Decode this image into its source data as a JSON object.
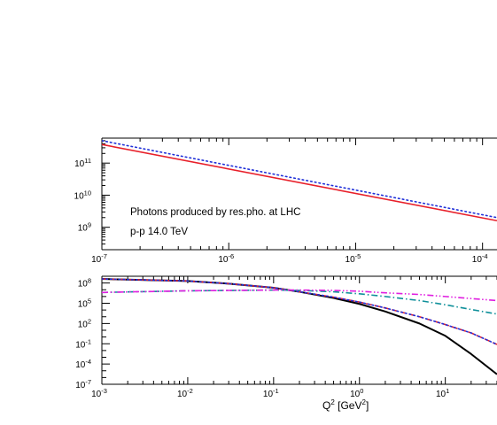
{
  "chart_data": [
    {
      "type": "line",
      "title": "",
      "annotations": [
        "Photons produced by res.pho. at LHC",
        "p-p 14.0 TeV"
      ],
      "xscale": "log",
      "yscale": "log",
      "xlim": [
        1e-07,
        0.00013
      ],
      "ylim": [
        200000000.0,
        600000000000.0
      ],
      "x_ticks": [
        {
          "value": 1e-07,
          "label": "10-7",
          "base": "10",
          "exp": "-7"
        },
        {
          "value": 1e-06,
          "label": "10-6",
          "base": "10",
          "exp": "-6"
        },
        {
          "value": 1e-05,
          "label": "10-5",
          "base": "10",
          "exp": "-5"
        },
        {
          "value": 0.0001,
          "label": "10-4",
          "base": "10",
          "exp": "-4"
        }
      ],
      "y_ticks": [
        {
          "value": 1000000000.0,
          "label": "109",
          "base": "10",
          "exp": "9"
        },
        {
          "value": 10000000000.0,
          "label": "1010",
          "base": "10",
          "exp": "10"
        },
        {
          "value": 100000000000.0,
          "label": "1011",
          "base": "10",
          "exp": "11"
        }
      ],
      "grid": false,
      "series": [
        {
          "color": "#e8202a",
          "style": "solid",
          "x": [
            1e-07,
            0.00013
          ],
          "y": [
            380000000000.0,
            1600000000.0
          ]
        },
        {
          "color": "#2030d8",
          "style": "dotted",
          "x": [
            1e-07,
            0.00013
          ],
          "y": [
            500000000000.0,
            2000000000.0
          ]
        }
      ]
    },
    {
      "type": "line",
      "title": "",
      "xlabel": {
        "base": "Q",
        "exp1": "2",
        "mid": " [GeV",
        "exp2": "2",
        "end": "]"
      },
      "xscale": "log",
      "yscale": "log",
      "xlim": [
        0.001,
        40
      ],
      "ylim": [
        1e-07,
        1000000000.0
      ],
      "x_ticks": [
        {
          "value": 0.001,
          "label": "10-3",
          "base": "10",
          "exp": "-3"
        },
        {
          "value": 0.01,
          "label": "10-2",
          "base": "10",
          "exp": "-2"
        },
        {
          "value": 0.1,
          "label": "10-1",
          "base": "10",
          "exp": "-1"
        },
        {
          "value": 1,
          "label": "100",
          "base": "10",
          "exp": "0"
        },
        {
          "value": 10,
          "label": "101",
          "base": "10",
          "exp": "1"
        }
      ],
      "y_ticks": [
        {
          "value": 1e-07,
          "label": "10-7",
          "base": "10",
          "exp": "-7"
        },
        {
          "value": 0.0001,
          "label": "10-4",
          "base": "10",
          "exp": "-4"
        },
        {
          "value": 0.1,
          "label": "10-1",
          "base": "10",
          "exp": "-1"
        },
        {
          "value": 100,
          "label": "102",
          "base": "10",
          "exp": "2"
        },
        {
          "value": 100000.0,
          "label": "105",
          "base": "10",
          "exp": "5"
        },
        {
          "value": 100000000.0,
          "label": "108",
          "base": "10",
          "exp": "8"
        }
      ],
      "grid": false,
      "series": [
        {
          "color": "#000000",
          "style": "solid",
          "x": [
            0.001,
            0.01,
            0.03,
            0.1,
            0.2,
            0.5,
            1,
            2,
            5,
            10,
            20,
            40
          ],
          "y": [
            400000000.0,
            200000000.0,
            80000000.0,
            20000000.0,
            5000000.0,
            600000.0,
            80000.0,
            6000.0,
            100.0,
            1.5,
            0.003,
            3e-06
          ]
        },
        {
          "color": "#e8202a",
          "style": "dashed",
          "x": [
            0.001,
            0.01,
            0.03,
            0.1,
            0.2,
            0.5,
            1,
            2,
            5,
            10,
            20,
            40
          ],
          "y": [
            400000000.0,
            200000000.0,
            80000000.0,
            20000000.0,
            5000000.0,
            800000.0,
            150000.0,
            20000.0,
            1000.0,
            70.0,
            4.0,
            0.08
          ]
        },
        {
          "color": "#2030d8",
          "style": "dotted",
          "x": [
            0.001,
            0.01,
            0.03,
            0.1,
            0.2,
            0.5,
            1,
            2,
            5,
            10,
            20,
            40
          ],
          "y": [
            400000000.0,
            200000000.0,
            80000000.0,
            20000000.0,
            5000000.0,
            800000.0,
            150000.0,
            20000.0,
            1000.0,
            70.0,
            4.0,
            0.08
          ]
        },
        {
          "color": "#10909a",
          "style": "dashdot",
          "x": [
            0.001,
            0.01,
            0.1,
            0.2,
            0.5,
            1,
            2,
            5,
            10,
            20,
            40
          ],
          "y": [
            4000000.0,
            7000000.0,
            9000000.0,
            8000000.0,
            5000000.0,
            2500000.0,
            1000000.0,
            250000.0,
            60000.0,
            12000.0,
            2500.0
          ]
        },
        {
          "color": "#e020e0",
          "style": "dashdotdot",
          "x": [
            0.001,
            0.01,
            0.1,
            0.2,
            0.5,
            1,
            2,
            5,
            10,
            20,
            40
          ],
          "y": [
            4000000.0,
            7000000.0,
            9000000.0,
            9000000.0,
            8000000.0,
            6000000.0,
            3500000.0,
            2000000.0,
            1000000.0,
            500000.0,
            250000.0
          ]
        }
      ]
    }
  ]
}
